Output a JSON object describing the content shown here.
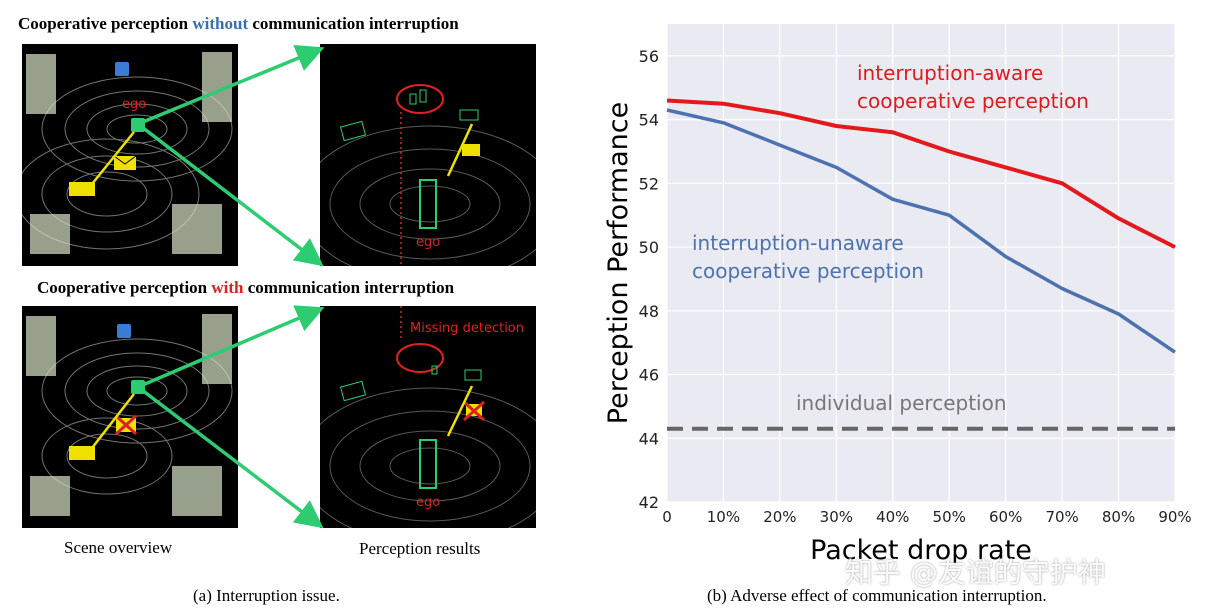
{
  "left_figure": {
    "top_heading": {
      "pre": "Cooperative perception ",
      "keyword": "without",
      "post": " communication interruption"
    },
    "bottom_heading": {
      "pre": "Cooperative perception ",
      "keyword": "with",
      "post": " communication interruption"
    },
    "ego_label": "ego",
    "missing_label": "Missing detection",
    "scene_caption": "Scene overview",
    "results_caption": "Perception results",
    "subcaption": "(a) Interruption issue."
  },
  "right_figure": {
    "subcaption": "(b) Adverse effect of communication interruption."
  },
  "watermark": "知乎 @友谊的守护神",
  "colors": {
    "aware": "#e31a1c",
    "unaware": "#4c72b0",
    "individual": "#666666",
    "plot_bg": "#eaeaf2",
    "green_arrow": "#2ecc71",
    "yellow": "#f0e000"
  },
  "chart_data": {
    "type": "line",
    "xlabel": "Packet drop rate",
    "ylabel": "Perception Performance",
    "x": [
      "0",
      "10%",
      "20%",
      "30%",
      "40%",
      "50%",
      "60%",
      "70%",
      "80%",
      "90%"
    ],
    "xlim": [
      0,
      90
    ],
    "ylim": [
      42,
      57
    ],
    "yticks": [
      42,
      44,
      46,
      48,
      50,
      52,
      54,
      56
    ],
    "grid": true,
    "series": [
      {
        "key": "aware",
        "values": [
          54.6,
          54.5,
          54.2,
          53.8,
          53.6,
          53.0,
          52.5,
          52.0,
          50.9,
          50.0
        ]
      },
      {
        "key": "unaware",
        "values": [
          54.3,
          53.9,
          53.2,
          52.5,
          51.5,
          51.0,
          49.7,
          48.7,
          47.9,
          46.7
        ]
      },
      {
        "key": "individual",
        "values": [
          44.3,
          44.3,
          44.3,
          44.3,
          44.3,
          44.3,
          44.3,
          44.3,
          44.3,
          44.3
        ],
        "dashed": true
      }
    ],
    "annotations": {
      "aware_line1": "interruption-aware",
      "aware_line2": "cooperative perception",
      "unaware_line1": "interruption-unaware",
      "unaware_line2": "cooperative perception",
      "individual": "individual perception"
    }
  }
}
